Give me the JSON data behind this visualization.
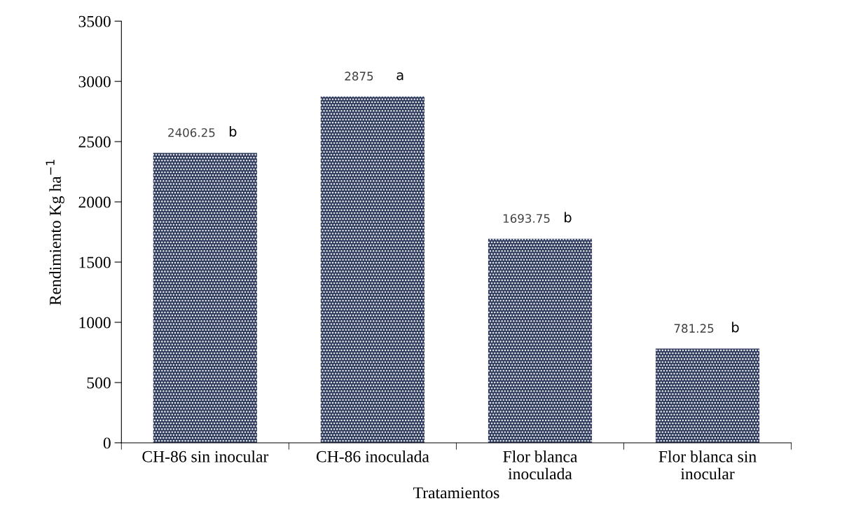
{
  "chart_data": {
    "type": "bar",
    "xlabel": "Tratamientos",
    "ylabel": "Rendimiento Kg ha$^{−1}$",
    "categories": [
      "CH-86 sin inocular",
      "CH-86 inoculada",
      "Flor blanca\ninoculada",
      "Flor blanca sin\ninocular"
    ],
    "values": [
      2406.25,
      2875,
      1693.75,
      781.25
    ],
    "color": "#2f3b5c",
    "ylim": [
      0,
      3500
    ],
    "yticks": [
      0,
      500,
      1000,
      1500,
      2000,
      2500,
      3000,
      3500
    ],
    "grid": false,
    "data_labels": true,
    "legend": false,
    "annotations": [
      {
        "text": "b",
        "x": "CH-86 sin inocular",
        "y": 2406.25
      },
      {
        "text": "a",
        "x": "CH-86 inoculada",
        "y": 2875
      },
      {
        "text": "b",
        "x": "Flor blanca\ninoculada",
        "y": 1693.75
      },
      {
        "text": "b",
        "x": "Flor blanca sin\ninocular",
        "y": 781.25
      }
    ]
  }
}
